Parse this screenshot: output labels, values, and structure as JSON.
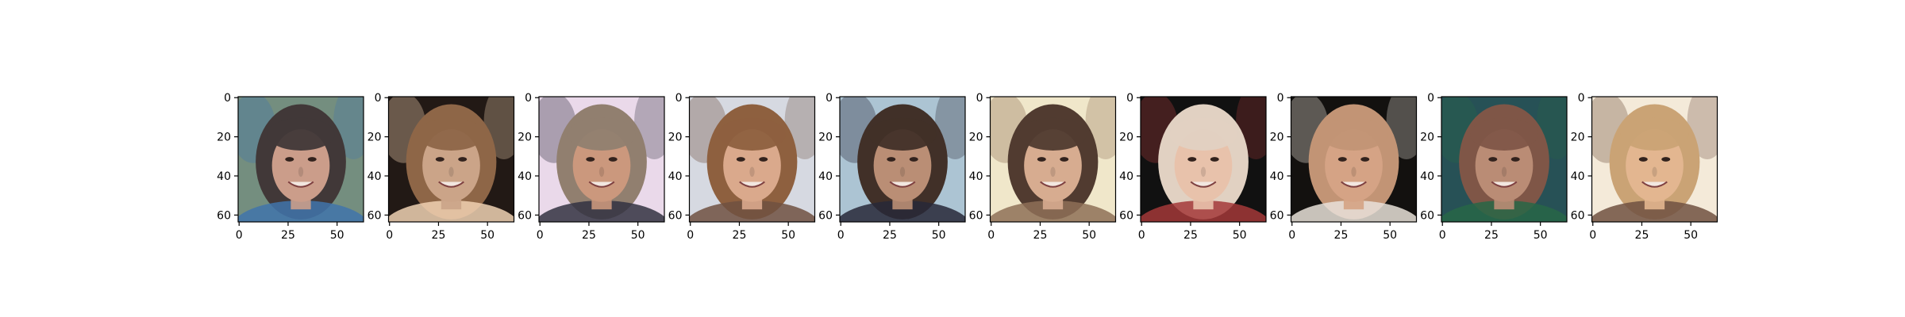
{
  "figure": {
    "panel_count": 10,
    "axis_x_ticks": [
      "0",
      "25",
      "50"
    ],
    "axis_y_ticks": [
      "0",
      "20",
      "40",
      "60"
    ],
    "panels": [
      {
        "subject": "woman with dark shoulder-length hair, smiling",
        "bg": "#6f8a7a",
        "hair": "#3a3030",
        "skin": "#c99a86",
        "accent": "#3a6fa8"
      },
      {
        "subject": "woman with light brown hair, dark background",
        "bg": "#1a100c",
        "hair": "#8a6040",
        "skin": "#c9a184",
        "accent": "#f0d0b0"
      },
      {
        "subject": "man with short light hair, smiling, dark jacket",
        "bg": "#ead8ea",
        "hair": "#8d7a6a",
        "skin": "#c99478",
        "accent": "#2a2a3a"
      },
      {
        "subject": "woman with brown hair, smiling",
        "bg": "#d5d8e0",
        "hair": "#8a5a38",
        "skin": "#d9a688",
        "accent": "#6a4a3a"
      },
      {
        "subject": "man with dark hair, light blue background, suit",
        "bg": "#a9c2d2",
        "hair": "#3a2820",
        "skin": "#b88a70",
        "accent": "#202030"
      },
      {
        "subject": "woman with long dark brown hair",
        "bg": "#f0e6c8",
        "hair": "#4a3428",
        "skin": "#d6a98c",
        "accent": "#8a6a50"
      },
      {
        "subject": "blonde woman, smiling, black background",
        "bg": "#080808",
        "hair": "#e0d0c0",
        "skin": "#e8c0a8",
        "accent": "#a03030"
      },
      {
        "subject": "woman with light brown hair, tilted head, black background",
        "bg": "#0a0806",
        "hair": "#c09070",
        "skin": "#d4a080",
        "accent": "#e8e0d8"
      },
      {
        "subject": "woman with auburn hair, green foliage background",
        "bg": "#1f4a50",
        "hair": "#7a5040",
        "skin": "#b88870",
        "accent": "#206040"
      },
      {
        "subject": "blonde woman, smiling, light background",
        "bg": "#f4ead8",
        "hair": "#c8a070",
        "skin": "#e2b48c",
        "accent": "#6a4a3a"
      }
    ]
  }
}
